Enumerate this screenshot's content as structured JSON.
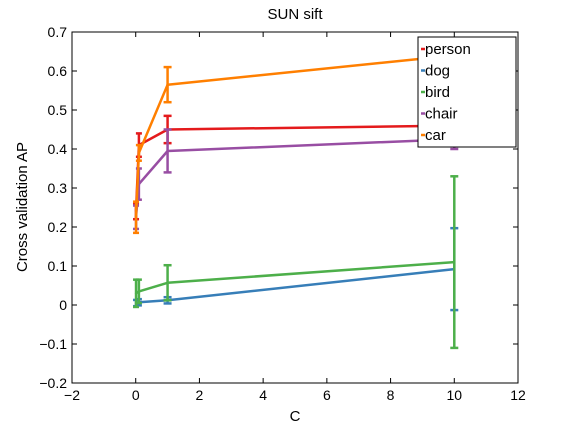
{
  "chart_data": {
    "type": "line",
    "title": "SUN sift",
    "xlabel": "C",
    "ylabel": "Cross validation AP",
    "xlim": [
      -2,
      12
    ],
    "ylim": [
      -0.2,
      0.7
    ],
    "xticks": [
      -2,
      0,
      2,
      4,
      6,
      8,
      10,
      12
    ],
    "yticks": [
      -0.2,
      -0.1,
      0,
      0.1,
      0.2,
      0.3,
      0.4,
      0.5,
      0.6,
      0.7
    ],
    "xtick_labels": [
      "−2",
      "0",
      "2",
      "4",
      "6",
      "8",
      "10",
      "12"
    ],
    "ytick_labels": [
      "−0.2",
      "−0.1",
      "0",
      "0.1",
      "0.2",
      "0.3",
      "0.4",
      "0.5",
      "0.6",
      "0.7"
    ],
    "grid": false,
    "legend_position": "top-right",
    "x": [
      0.01,
      0.1,
      1,
      10
    ],
    "series": [
      {
        "name": "person",
        "color": "#e41a1c",
        "values": [
          0.24,
          0.41,
          0.45,
          0.46
        ],
        "err": [
          0.02,
          0.03,
          0.035,
          0.03
        ]
      },
      {
        "name": "dog",
        "color": "#377eb8",
        "values": [
          0.005,
          0.007,
          0.012,
          0.092
        ],
        "err": [
          0.008,
          0.008,
          0.008,
          0.105
        ]
      },
      {
        "name": "bird",
        "color": "#4daf4a",
        "values": [
          0.03,
          0.035,
          0.057,
          0.11
        ],
        "err": [
          0.035,
          0.03,
          0.045,
          0.22
        ]
      },
      {
        "name": "chair",
        "color": "#984ea3",
        "values": [
          0.225,
          0.31,
          0.395,
          0.425
        ],
        "err": [
          0.03,
          0.04,
          0.055,
          0.025
        ]
      },
      {
        "name": "car",
        "color": "#ff7f00",
        "values": [
          0.225,
          0.39,
          0.565,
          0.64
        ],
        "err": [
          0.04,
          0.02,
          0.045,
          0.015
        ]
      }
    ]
  }
}
